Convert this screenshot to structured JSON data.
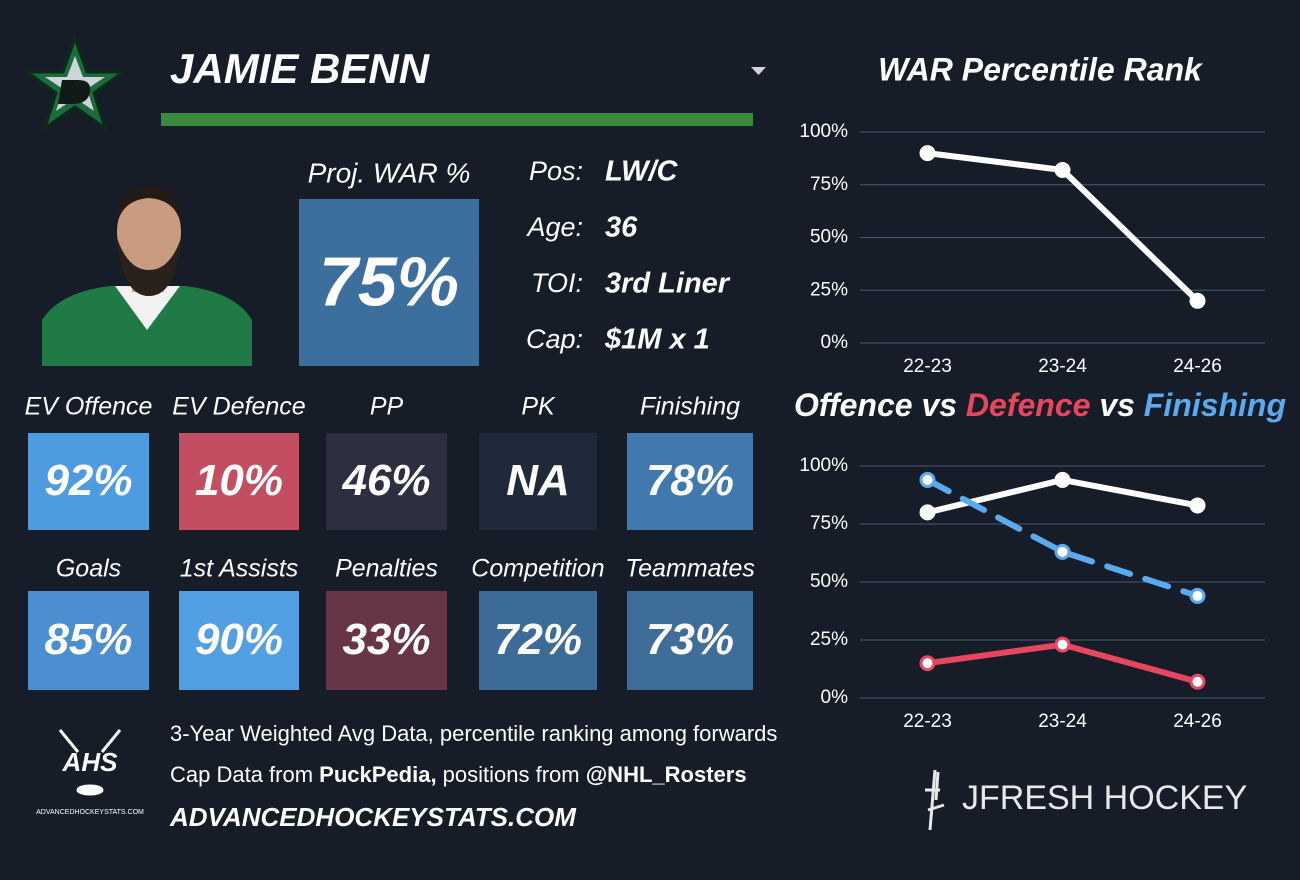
{
  "header": {
    "player": "JAMIE BENN"
  },
  "projection": {
    "label": "Proj. WAR %",
    "value": "75%",
    "color": "#3d6f9e"
  },
  "bio": [
    {
      "label": "Pos:",
      "value": "LW/C"
    },
    {
      "label": "Age:",
      "value": "36"
    },
    {
      "label": "TOI:",
      "value": "3rd Liner"
    },
    {
      "label": "Cap:",
      "value": "$1M x 1"
    }
  ],
  "tiles": [
    [
      {
        "label": "EV Offence",
        "value": "92%",
        "color": "#4f9be0"
      },
      {
        "label": "EV Defence",
        "value": "10%",
        "color": "#c44e61"
      },
      {
        "label": "PP",
        "value": "46%",
        "color": "#2e2e41"
      },
      {
        "label": "PK",
        "value": "NA",
        "color": "#1e2a39"
      },
      {
        "label": "Finishing",
        "value": "78%",
        "color": "#4179ae"
      }
    ],
    [
      {
        "label": "Goals",
        "value": "85%",
        "color": "#4b8fd0"
      },
      {
        "label": "1st Assists",
        "value": "90%",
        "color": "#529fe3"
      },
      {
        "label": "Penalties",
        "value": "33%",
        "color": "#683546"
      },
      {
        "label": "Competition",
        "value": "72%",
        "color": "#3d6b97"
      },
      {
        "label": "Teammates",
        "value": "73%",
        "color": "#3f6d99"
      }
    ]
  ],
  "footer": {
    "logo": "AHS",
    "logo_caption": "ADVANCEDHOCKEYSTATS.COM",
    "line1": "3-Year Weighted Avg Data, percentile ranking among forwards",
    "line2": [
      "Cap Data from ",
      "PuckPedia,",
      " positions from ",
      "@NHL_Rosters"
    ],
    "url": "ADVANCEDHOCKEYSTATS.COM",
    "brand": "JFRESH HOCKEY"
  },
  "chart_data": [
    {
      "type": "line",
      "title": "WAR Percentile Rank",
      "categories": [
        "22-23",
        "23-24",
        "24-26"
      ],
      "series": [
        {
          "color": "#ffffff",
          "values": [
            90,
            82,
            20
          ]
        }
      ],
      "ylim": [
        0,
        100
      ],
      "yticks": [
        {
          "value": 0,
          "label": "0%"
        },
        {
          "value": 25,
          "label": "25%"
        },
        {
          "value": 50,
          "label": "50%"
        },
        {
          "value": 75,
          "label": "75%"
        },
        {
          "value": 100,
          "label": "100%"
        }
      ],
      "grid": true
    },
    {
      "type": "line",
      "legend_joiner": "vs",
      "categories": [
        "22-23",
        "23-24",
        "24-26"
      ],
      "series": [
        {
          "name": "Offence",
          "color": "#ffffff",
          "values": [
            80,
            94,
            83
          ]
        },
        {
          "name": "Defence",
          "color": "#e8465e",
          "values": [
            15,
            23,
            7
          ]
        },
        {
          "name": "Finishing",
          "color": "#5aaaf0",
          "dashed": true,
          "values": [
            94,
            63,
            44
          ]
        }
      ],
      "ylim": [
        0,
        100
      ],
      "yticks": [
        {
          "value": 0,
          "label": "0%"
        },
        {
          "value": 25,
          "label": "25%"
        },
        {
          "value": 50,
          "label": "50%"
        },
        {
          "value": 75,
          "label": "75%"
        },
        {
          "value": 100,
          "label": "100%"
        }
      ],
      "grid": true
    }
  ]
}
